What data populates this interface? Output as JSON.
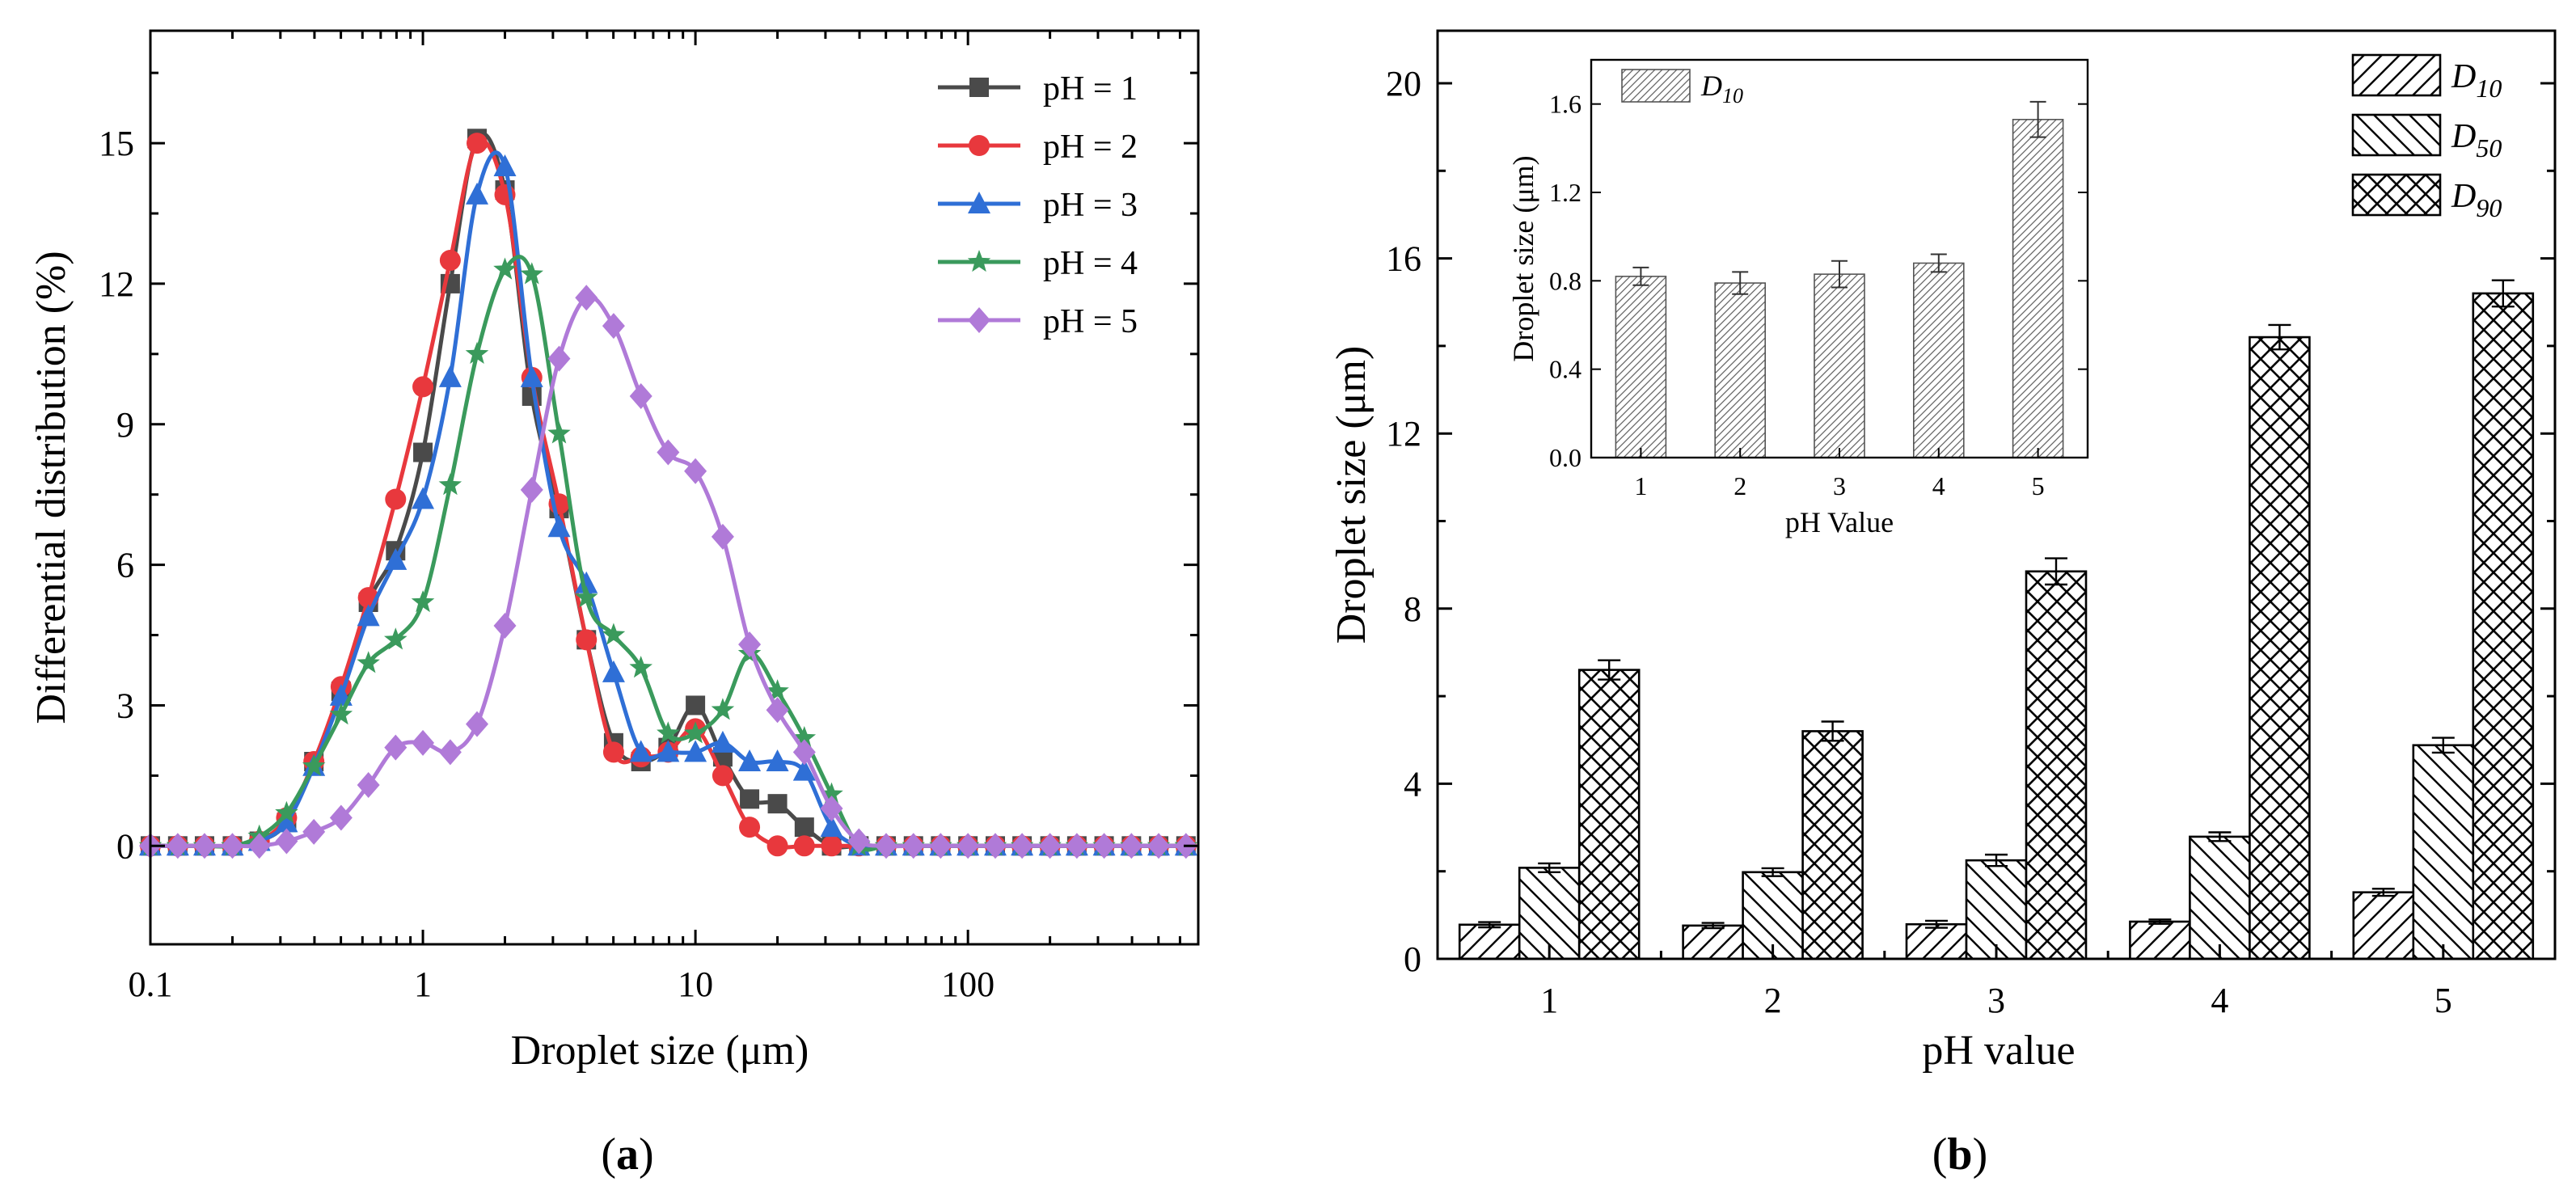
{
  "figure": {
    "panel_labels": {
      "a_open": "(",
      "a_letter": "a",
      "a_close": ")",
      "b_open": "(",
      "b_letter": "b",
      "b_close": ")"
    }
  },
  "colors": {
    "pH1": "#4a4a4a",
    "pH2": "#e8383d",
    "pH3": "#2f6fd6",
    "pH4": "#3a9a5c",
    "pH5": "#b07ad8"
  },
  "chart_data": [
    {
      "id": "a",
      "type": "line",
      "title": "",
      "xlabel": "Droplet size (μm)",
      "ylabel": "Differential distribution (%)",
      "xscale": "log",
      "xlim": [
        0.1,
        700
      ],
      "ylim": [
        -2.1,
        17.4
      ],
      "xticks": [
        0.1,
        1,
        10,
        100
      ],
      "xtick_labels": [
        "0.1",
        "1",
        "10",
        "100"
      ],
      "yticks": [
        0,
        3,
        6,
        9,
        12,
        15
      ],
      "ytick_labels": [
        "0",
        "3",
        "6",
        "9",
        "12",
        "15"
      ],
      "legend_position": "top-right",
      "x": [
        0.1,
        0.126,
        0.158,
        0.2,
        0.251,
        0.316,
        0.398,
        0.501,
        0.631,
        0.794,
        1.0,
        1.26,
        1.58,
        2.0,
        2.51,
        3.16,
        3.98,
        5.01,
        6.31,
        7.94,
        10.0,
        12.6,
        15.8,
        20.0,
        25.1,
        31.6,
        39.8,
        50.1,
        63.1,
        79.4,
        100,
        126,
        158,
        200,
        251,
        316,
        398,
        501,
        631
      ],
      "series": [
        {
          "name": "pH = 1",
          "marker": "square",
          "color_key": "pH1",
          "values": [
            0,
            0,
            0,
            0,
            0.1,
            0.5,
            1.8,
            3.3,
            5.2,
            6.3,
            8.4,
            12.0,
            15.1,
            14.0,
            9.6,
            7.2,
            4.4,
            2.2,
            1.8,
            2.1,
            3.0,
            1.9,
            1.0,
            0.9,
            0.4,
            0,
            0,
            0,
            0,
            0,
            0,
            0,
            0,
            0,
            0,
            0,
            0,
            0,
            0
          ]
        },
        {
          "name": "pH = 2",
          "marker": "circle",
          "color_key": "pH2",
          "values": [
            0,
            0,
            0,
            0,
            0.1,
            0.6,
            1.8,
            3.4,
            5.3,
            7.4,
            9.8,
            12.5,
            15.0,
            13.9,
            10.0,
            7.3,
            4.4,
            2.0,
            1.9,
            2.0,
            2.5,
            1.5,
            0.4,
            0,
            0,
            0,
            0,
            0,
            0,
            0,
            0,
            0,
            0,
            0,
            0,
            0,
            0,
            0,
            0
          ]
        },
        {
          "name": "pH = 3",
          "marker": "triangle",
          "color_key": "pH3",
          "values": [
            0,
            0,
            0,
            0,
            0.1,
            0.5,
            1.7,
            3.2,
            4.9,
            6.1,
            7.4,
            10.0,
            13.9,
            14.5,
            10.0,
            6.8,
            5.6,
            3.7,
            2.0,
            2.0,
            2.0,
            2.2,
            1.8,
            1.8,
            1.6,
            0.4,
            0,
            0,
            0,
            0,
            0,
            0,
            0,
            0,
            0,
            0,
            0,
            0,
            0
          ]
        },
        {
          "name": "pH = 4",
          "marker": "star",
          "color_key": "pH4",
          "values": [
            0,
            0,
            0,
            0,
            0.2,
            0.7,
            1.7,
            2.8,
            3.9,
            4.4,
            5.2,
            7.7,
            10.5,
            12.3,
            12.2,
            8.8,
            5.3,
            4.5,
            3.8,
            2.4,
            2.4,
            2.9,
            4.1,
            3.3,
            2.3,
            1.1,
            0,
            0,
            0,
            0,
            0,
            0,
            0,
            0,
            0,
            0,
            0,
            0,
            0
          ]
        },
        {
          "name": "pH = 5",
          "marker": "diamond",
          "color_key": "pH5",
          "values": [
            0,
            0,
            0,
            0,
            0,
            0.1,
            0.3,
            0.6,
            1.3,
            2.1,
            2.2,
            2.0,
            2.6,
            4.7,
            7.6,
            10.4,
            11.7,
            11.1,
            9.6,
            8.4,
            8.0,
            6.6,
            4.3,
            2.9,
            2.0,
            0.8,
            0.1,
            0,
            0,
            0,
            0,
            0,
            0,
            0,
            0,
            0,
            0,
            0,
            0
          ]
        }
      ]
    },
    {
      "id": "b",
      "type": "bar",
      "title": "",
      "xlabel": "pH value",
      "ylabel": "Droplet size (μm)",
      "ylim": [
        0,
        21.2
      ],
      "yticks": [
        0,
        4,
        8,
        12,
        16,
        20
      ],
      "ytick_labels": [
        "0",
        "4",
        "8",
        "12",
        "16",
        "20"
      ],
      "categories": [
        "1",
        "2",
        "3",
        "4",
        "5"
      ],
      "legend_position": "top-right",
      "series": [
        {
          "name_main": "D",
          "name_sub": "10",
          "pattern": "hatch-forward",
          "values": [
            0.78,
            0.76,
            0.79,
            0.85,
            1.52
          ],
          "errors": [
            0.06,
            0.06,
            0.08,
            0.05,
            0.08
          ]
        },
        {
          "name_main": "D",
          "name_sub": "50",
          "pattern": "hatch-backward",
          "values": [
            2.08,
            1.98,
            2.25,
            2.79,
            4.88
          ],
          "errors": [
            0.1,
            0.09,
            0.13,
            0.1,
            0.17
          ]
        },
        {
          "name_main": "D",
          "name_sub": "90",
          "pattern": "crosshatch",
          "values": [
            6.6,
            5.2,
            8.85,
            14.2,
            15.2
          ],
          "errors": [
            0.22,
            0.22,
            0.3,
            0.28,
            0.3
          ]
        }
      ],
      "inset": {
        "type": "bar",
        "xlabel": "pH Value",
        "ylabel": "Droplet size (μm)",
        "ylim": [
          0,
          1.8
        ],
        "yticks": [
          0.0,
          0.4,
          0.8,
          1.2,
          1.6
        ],
        "ytick_labels": [
          "0.0",
          "0.4",
          "0.8",
          "1.2",
          "1.6"
        ],
        "categories": [
          "1",
          "2",
          "3",
          "4",
          "5"
        ],
        "legend_position": "top-left",
        "series": [
          {
            "name_main": "D",
            "name_sub": "10",
            "pattern": "hatch-fine",
            "values": [
              0.82,
              0.79,
              0.83,
              0.88,
              1.53
            ],
            "errors": [
              0.04,
              0.05,
              0.06,
              0.04,
              0.08
            ]
          }
        ]
      }
    }
  ]
}
